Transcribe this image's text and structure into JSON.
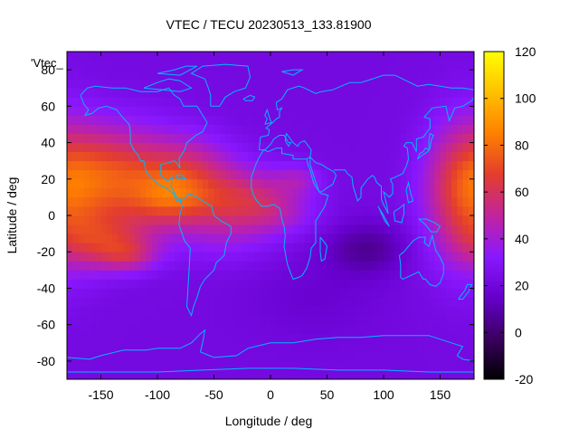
{
  "chart_data": {
    "type": "heatmap",
    "title": "VTEC / TECU 20230513_133.81900",
    "xlabel": "Longitude / deg",
    "ylabel": "Latitude / deg",
    "legend_key": "'Vtec_",
    "xlim": [
      -180,
      180
    ],
    "ylim": [
      -90,
      90
    ],
    "x_ticks": [
      -150,
      -100,
      -50,
      0,
      50,
      100,
      150
    ],
    "y_ticks": [
      -80,
      -60,
      -40,
      -20,
      0,
      20,
      40,
      60,
      80
    ],
    "colorbar": {
      "range": [
        -20,
        120
      ],
      "ticks": [
        -20,
        0,
        20,
        40,
        60,
        80,
        100,
        120
      ],
      "palette": [
        "#000000",
        "#3a0060",
        "#6600cc",
        "#8a18ff",
        "#c2249d",
        "#e33d2e",
        "#ff8000",
        "#ffc000",
        "#ffff00"
      ]
    },
    "background_vtec": 22,
    "blobs": [
      {
        "lon": -138,
        "lat": 20,
        "slon": 38,
        "slat": 20,
        "amp": 48
      },
      {
        "lon": -145,
        "lat": -15,
        "slon": 28,
        "slat": 10,
        "amp": 28
      },
      {
        "lon": -125,
        "lat": -22,
        "slon": 18,
        "slat": 6,
        "amp": 18
      },
      {
        "lon": -70,
        "lat": 25,
        "slon": 28,
        "slat": 14,
        "amp": 25
      },
      {
        "lon": -90,
        "lat": 10,
        "slon": 22,
        "slat": 10,
        "amp": 22
      },
      {
        "lon": -50,
        "lat": 5,
        "slon": 35,
        "slat": 12,
        "amp": 20
      },
      {
        "lon": -15,
        "lat": 10,
        "slon": 30,
        "slat": 12,
        "amp": 22
      },
      {
        "lon": 25,
        "lat": 20,
        "slon": 15,
        "slat": 6,
        "amp": 14
      },
      {
        "lon": 10,
        "lat": 0,
        "slon": 25,
        "slat": 8,
        "amp": 10
      },
      {
        "lon": 172,
        "lat": 12,
        "slon": 25,
        "slat": 28,
        "amp": 38
      },
      {
        "lon": -40,
        "lat": -15,
        "slon": 30,
        "slat": 10,
        "amp": 8
      },
      {
        "lon": 85,
        "lat": -18,
        "slon": 25,
        "slat": 10,
        "amp": -16
      },
      {
        "lon": 40,
        "lat": -45,
        "slon": 40,
        "slat": 15,
        "amp": -5
      }
    ]
  }
}
